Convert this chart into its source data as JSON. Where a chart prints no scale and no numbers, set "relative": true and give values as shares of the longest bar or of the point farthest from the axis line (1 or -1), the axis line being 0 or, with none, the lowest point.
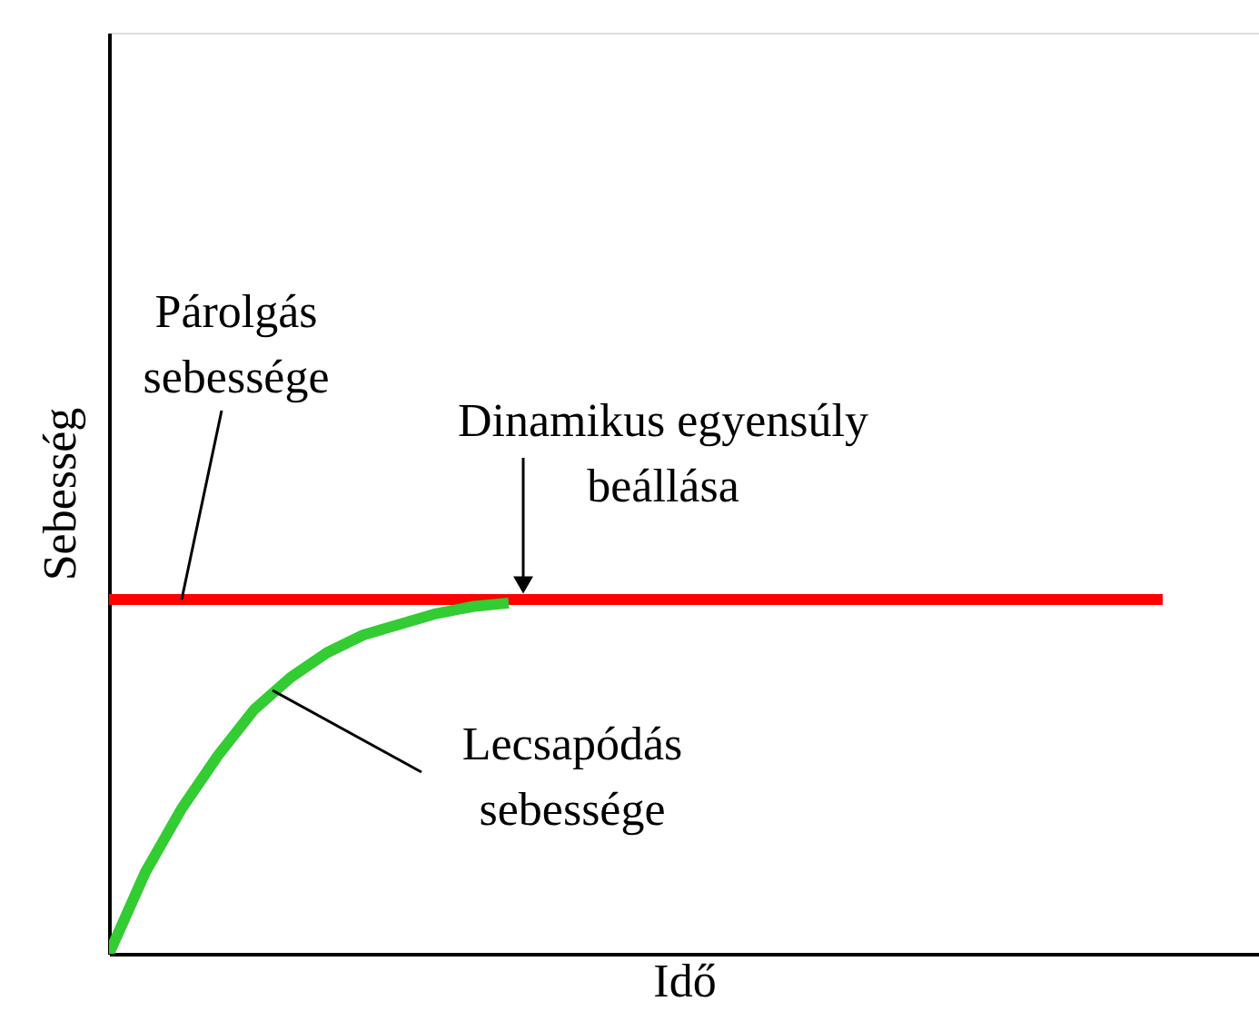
{
  "chart_data": {
    "type": "line",
    "relative": true,
    "xlabel": "Idő",
    "ylabel": "Sebesség",
    "grid": false,
    "marker": "none",
    "line_style": "solid",
    "categories": [
      null,
      null,
      null,
      null,
      null,
      null,
      null,
      null,
      null,
      null,
      null,
      null,
      null,
      null,
      null,
      null,
      null,
      null,
      null,
      null,
      null,
      null,
      null,
      null,
      null,
      null,
      null,
      null,
      null,
      null
    ],
    "series": [
      {
        "color": "#ff0000",
        "values": [
          1,
          1,
          1,
          1,
          1,
          1,
          1,
          1,
          1,
          1,
          1,
          1,
          1,
          1,
          1,
          1,
          1,
          1,
          1,
          1,
          1,
          1,
          1,
          1,
          1,
          1,
          1,
          1,
          1,
          1
        ]
      },
      {
        "color": "#33cc33",
        "values": [
          0,
          0.23,
          0.41,
          0.56,
          0.69,
          0.78,
          0.85,
          0.9,
          0.93,
          0.96,
          0.98,
          0.99,
          null,
          null,
          null,
          null,
          null,
          null,
          null,
          null,
          null,
          null,
          null,
          null,
          null,
          null,
          null,
          null,
          null,
          null
        ]
      }
    ],
    "annotations": [
      "Párolgás\nsebessége",
      "Dinamikus egyensúly\nbeállása",
      "Lecsapódás\nsebessége"
    ]
  }
}
